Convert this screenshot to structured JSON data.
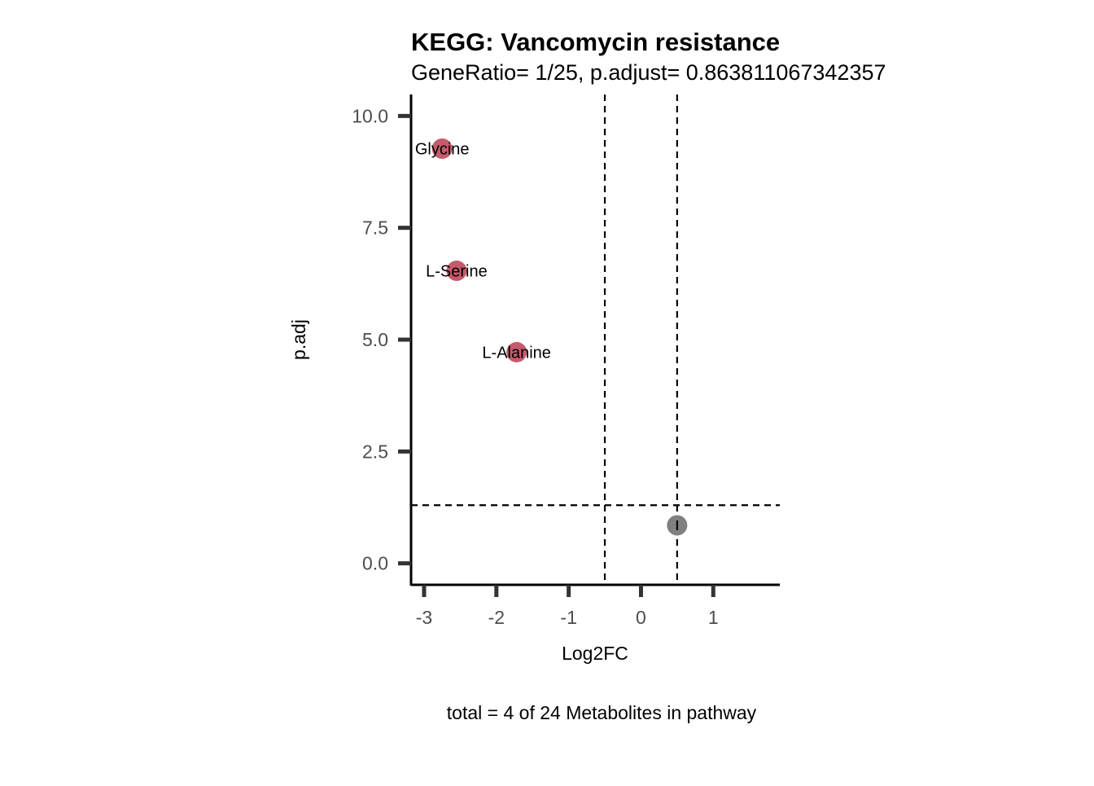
{
  "chart_data": {
    "type": "scatter",
    "title": "KEGG: Vancomycin resistance",
    "subtitle": "GeneRatio= 1/25, p.adjust= 0.863811067342357",
    "xlabel": "Log2FC",
    "ylabel": "p.adj",
    "caption": "total = 4 of 24 Metabolites in pathway",
    "xlim": [
      -3.18,
      1.92
    ],
    "ylim": [
      -0.48,
      10.48
    ],
    "x_ticks": [
      -3,
      -2,
      -1,
      0,
      1
    ],
    "x_tick_labels": [
      "-3",
      "-2",
      "-1",
      "0",
      "1"
    ],
    "y_ticks": [
      0,
      2.5,
      5,
      7.5,
      10
    ],
    "y_tick_labels": [
      "0.0",
      "2.5",
      "5.0",
      "7.5",
      "10.0"
    ],
    "grid": false,
    "legend": "none",
    "vlines": [
      -0.5,
      0.5
    ],
    "hlines": [
      1.3
    ],
    "points": [
      {
        "x": -2.75,
        "y": 9.27,
        "label": "Glycine",
        "color": "#c45a6b"
      },
      {
        "x": -2.55,
        "y": 6.54,
        "label": "L-Serine",
        "color": "#c45a6b"
      },
      {
        "x": -1.72,
        "y": 4.72,
        "label": "L-Alanine",
        "color": "#c45a6b"
      },
      {
        "x": 0.5,
        "y": 0.85,
        "label": "",
        "color": "#808080"
      }
    ],
    "colors": {
      "significant": "#c45a6b",
      "not_significant": "#808080",
      "axis": "#000000",
      "ticks": "#333333",
      "tick_labels": "#4d4d4d"
    }
  }
}
